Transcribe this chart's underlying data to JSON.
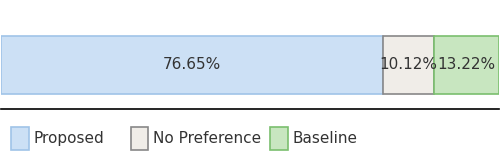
{
  "values": [
    76.65,
    10.12,
    13.22
  ],
  "labels": [
    "76.65%",
    "10.12%",
    "13.22%"
  ],
  "colors": [
    "#cce0f5",
    "#f0ede8",
    "#c8e6c0"
  ],
  "edge_colors": [
    "#a0c4e8",
    "#888888",
    "#7abf6e"
  ],
  "legend_labels": [
    "Proposed",
    "No Preference",
    "Baseline"
  ],
  "bar_height": 0.55,
  "label_fontsize": 11,
  "legend_fontsize": 11
}
